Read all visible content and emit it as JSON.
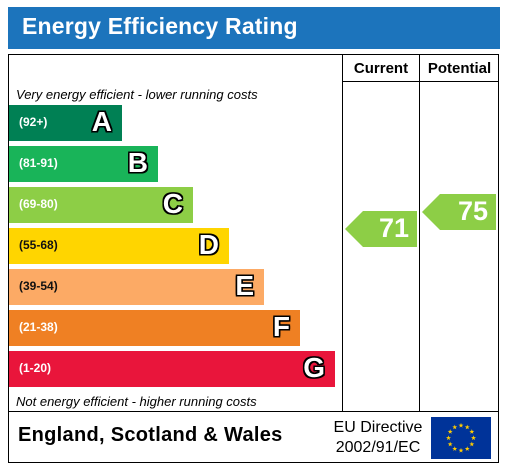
{
  "title": "Energy Efficiency Rating",
  "columns": {
    "current": "Current",
    "potential": "Potential"
  },
  "top_note": "Very energy efficient - lower running costs",
  "bottom_note": "Not energy efficient - higher running costs",
  "footer": {
    "country": "England, Scotland & Wales",
    "directive_line1": "EU Directive",
    "directive_line2": "2002/91/EC"
  },
  "icons": {
    "flag": "eu-flag-icon"
  },
  "chart_data": {
    "type": "bar",
    "categories": [
      "A",
      "B",
      "C",
      "D",
      "E",
      "F",
      "G"
    ],
    "ranges": [
      "(92+)",
      "(81-91)",
      "(69-80)",
      "(55-68)",
      "(39-54)",
      "(21-38)",
      "(1-20)"
    ],
    "colors": [
      "#008054",
      "#19b459",
      "#8dce46",
      "#ffd500",
      "#fcaa65",
      "#ef8023",
      "#e9153b"
    ],
    "current": {
      "value": 71,
      "band": "C",
      "color": "#8dce46"
    },
    "potential": {
      "value": 75,
      "band": "C",
      "color": "#8dce46"
    }
  }
}
